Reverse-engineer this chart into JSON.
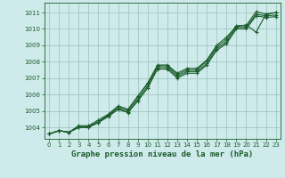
{
  "title": "Graphe pression niveau de la mer (hPa)",
  "bg_color": "#ceeaea",
  "grid_color": "#a0c8c0",
  "line_color": "#1a5c2a",
  "marker_color": "#1a5c2a",
  "xlim": [
    -0.5,
    23.5
  ],
  "ylim": [
    1003.3,
    1011.6
  ],
  "yticks": [
    1004,
    1005,
    1006,
    1007,
    1008,
    1009,
    1010,
    1011
  ],
  "xticks": [
    0,
    1,
    2,
    3,
    4,
    5,
    6,
    7,
    8,
    9,
    10,
    11,
    12,
    13,
    14,
    15,
    16,
    17,
    18,
    19,
    20,
    21,
    22,
    23
  ],
  "series": [
    [
      1003.6,
      1003.8,
      1003.7,
      1004.0,
      1004.05,
      1004.35,
      1004.75,
      1005.25,
      1005.05,
      1005.85,
      1006.65,
      1007.75,
      1007.75,
      1007.2,
      1007.5,
      1007.5,
      1008.05,
      1008.9,
      1009.35,
      1010.2,
      1010.2,
      1011.05,
      1010.9,
      1011.0
    ],
    [
      1003.6,
      1003.8,
      1003.7,
      1004.1,
      1004.1,
      1004.45,
      1004.8,
      1005.3,
      1005.1,
      1005.9,
      1006.7,
      1007.8,
      1007.8,
      1007.3,
      1007.6,
      1007.6,
      1008.1,
      1009.0,
      1009.5,
      1010.15,
      1010.25,
      1009.8,
      1010.9,
      1011.0
    ],
    [
      1003.6,
      1003.8,
      1003.7,
      1004.0,
      1004.0,
      1004.3,
      1004.7,
      1005.15,
      1004.95,
      1005.7,
      1006.5,
      1007.65,
      1007.65,
      1007.1,
      1007.4,
      1007.4,
      1007.9,
      1008.8,
      1009.2,
      1010.1,
      1010.1,
      1010.9,
      1010.8,
      1010.85
    ],
    [
      1003.6,
      1003.8,
      1003.7,
      1004.0,
      1004.0,
      1004.3,
      1004.65,
      1005.1,
      1004.9,
      1005.6,
      1006.4,
      1007.55,
      1007.55,
      1007.0,
      1007.3,
      1007.3,
      1007.8,
      1008.7,
      1009.1,
      1010.0,
      1010.0,
      1010.8,
      1010.7,
      1010.75
    ]
  ],
  "ylabel_fontsize": 5.5,
  "xlabel_fontsize": 6.5,
  "tick_labelsize": 5.0
}
